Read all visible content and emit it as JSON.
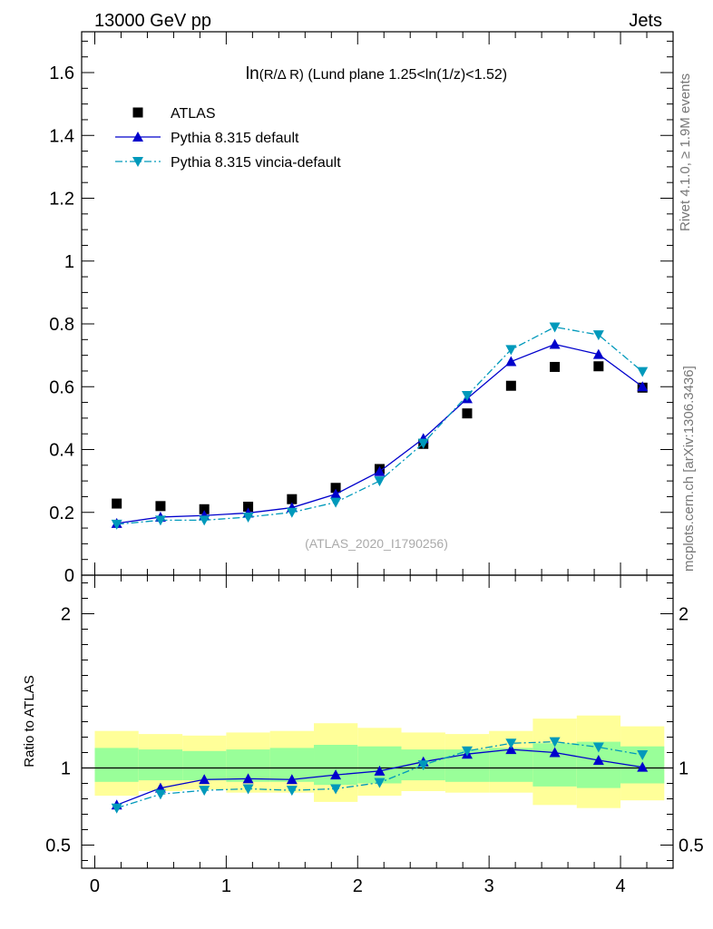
{
  "header": {
    "left": "13000 GeV pp",
    "right": "Jets"
  },
  "side_labels": {
    "rivet": "Rivet 4.1.0, ≥ 1.9M events",
    "mcplots": "mcplots.cern.ch [arXiv:1306.3436]"
  },
  "watermark": "(ATLAS_2020_I1790256)",
  "colors": {
    "atlas": "#000000",
    "pythia_default": "#0000cc",
    "pythia_vincia": "#0099bb",
    "band_outer": "#ffff99",
    "band_inner": "#99ff99"
  },
  "chart_data": [
    {
      "type": "scatter",
      "panel": "main",
      "title": "ln(R/Δ R) (Lund plane 1.25<ln(1/z)<1.52)",
      "title_parts": {
        "prefix": "ln",
        "argument": "(R/Δ R)",
        "suffix": " (Lund plane 1.25<ln(1/z)<1.52)"
      },
      "xlabel": "",
      "ylabel": "",
      "xlim": [
        -0.1,
        4.4
      ],
      "ylim": [
        0,
        1.73
      ],
      "yticks": [
        0,
        0.2,
        0.4,
        0.6,
        0.8,
        1,
        1.2,
        1.4,
        1.6
      ],
      "ytick_labels": [
        "0",
        "0.2",
        "0.4",
        "0.6",
        "0.8",
        "1",
        "1.2",
        "1.4",
        "1.6"
      ],
      "legend": [
        "ATLAS",
        "Pythia 8.315 default",
        "Pythia 8.315 vincia-default"
      ],
      "legend_position": "top-left",
      "x": [
        0.167,
        0.5,
        0.833,
        1.167,
        1.5,
        1.833,
        2.167,
        2.5,
        2.833,
        3.167,
        3.5,
        3.833,
        4.167
      ],
      "series": [
        {
          "name": "ATLAS",
          "marker": "square",
          "values": [
            0.228,
            0.22,
            0.21,
            0.218,
            0.242,
            0.278,
            0.338,
            0.418,
            0.515,
            0.603,
            0.663,
            0.665,
            0.597
          ]
        },
        {
          "name": "Pythia 8.315 default",
          "marker": "triangle-up",
          "line": "solid",
          "values": [
            0.165,
            0.185,
            0.19,
            0.198,
            0.215,
            0.258,
            0.33,
            0.435,
            0.562,
            0.68,
            0.735,
            0.703,
            0.6
          ]
        },
        {
          "name": "Pythia 8.315 vincia-default",
          "marker": "triangle-down",
          "line": "dashdot",
          "values": [
            0.162,
            0.175,
            0.175,
            0.185,
            0.2,
            0.232,
            0.3,
            0.42,
            0.572,
            0.718,
            0.79,
            0.765,
            0.648
          ]
        }
      ]
    },
    {
      "type": "line",
      "panel": "ratio",
      "xlabel": "",
      "ylabel": "Ratio to ATLAS",
      "xlim": [
        -0.1,
        4.4
      ],
      "ylim": [
        0.35,
        2.25
      ],
      "xticks": [
        0,
        1,
        2,
        3,
        4
      ],
      "xtick_labels": [
        "0",
        "1",
        "2",
        "3",
        "4"
      ],
      "yticks": [
        0.5,
        1,
        2
      ],
      "ytick_labels": [
        "0.5",
        "1",
        "2"
      ],
      "reference_line": 1,
      "bin_edges": [
        0,
        0.333,
        0.667,
        1.0,
        1.333,
        1.667,
        2.0,
        2.333,
        2.667,
        3.0,
        3.333,
        3.667,
        4.0,
        4.333
      ],
      "band_outer": {
        "low": [
          0.82,
          0.85,
          0.86,
          0.84,
          0.84,
          0.78,
          0.82,
          0.85,
          0.84,
          0.84,
          0.76,
          0.74,
          0.79
        ],
        "high": [
          1.24,
          1.22,
          1.21,
          1.23,
          1.24,
          1.29,
          1.26,
          1.23,
          1.22,
          1.24,
          1.32,
          1.34,
          1.27
        ]
      },
      "band_inner": {
        "low": [
          0.91,
          0.92,
          0.92,
          0.91,
          0.91,
          0.89,
          0.9,
          0.92,
          0.91,
          0.91,
          0.88,
          0.87,
          0.9
        ],
        "high": [
          1.13,
          1.12,
          1.11,
          1.12,
          1.13,
          1.15,
          1.14,
          1.12,
          1.12,
          1.13,
          1.16,
          1.17,
          1.14
        ]
      },
      "x": [
        0.167,
        0.5,
        0.833,
        1.167,
        1.5,
        1.833,
        2.167,
        2.5,
        2.833,
        3.167,
        3.5,
        3.833,
        4.167
      ],
      "series": [
        {
          "name": "Pythia 8.315 default",
          "marker": "triangle-up",
          "line": "solid",
          "values": [
            0.76,
            0.87,
            0.925,
            0.93,
            0.925,
            0.955,
            0.98,
            1.04,
            1.09,
            1.12,
            1.1,
            1.05,
            1.005
          ]
        },
        {
          "name": "Pythia 8.315 vincia-default",
          "marker": "triangle-down",
          "line": "dashdot",
          "values": [
            0.74,
            0.83,
            0.855,
            0.865,
            0.855,
            0.865,
            0.905,
            1.02,
            1.11,
            1.16,
            1.17,
            1.135,
            1.085
          ]
        }
      ]
    }
  ]
}
